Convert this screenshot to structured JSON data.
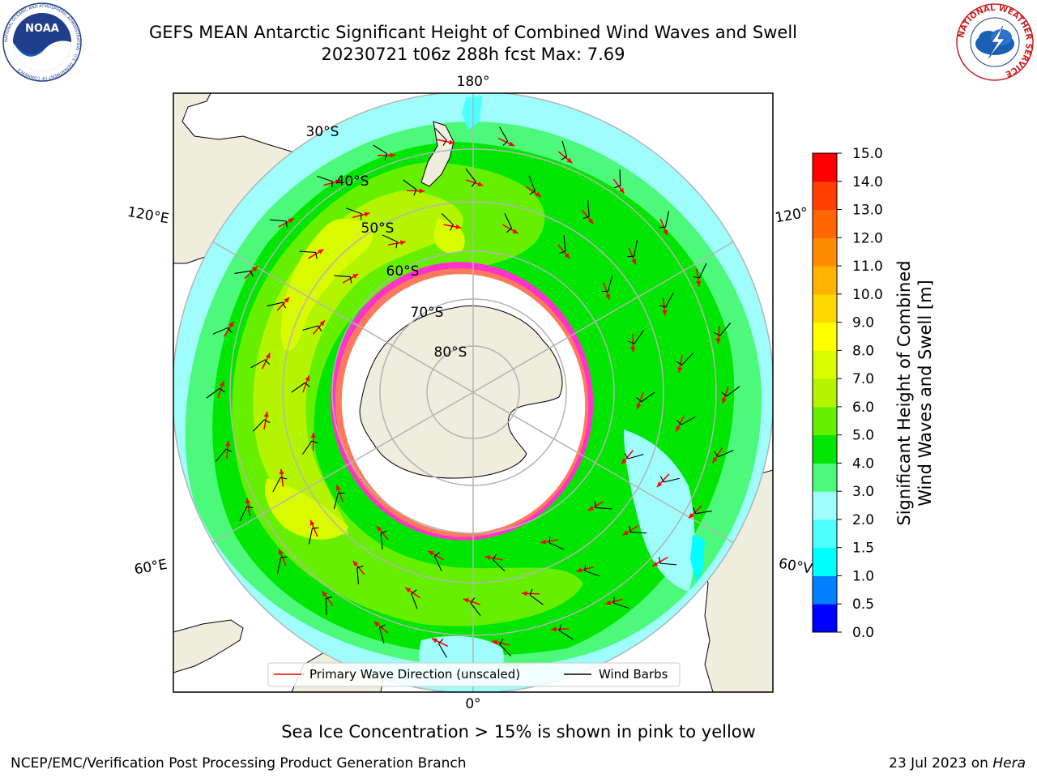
{
  "header": {
    "title_line1": "GEFS MEAN Antarctic Significant Height of Combined Wind Waves and Swell",
    "title_line2": "20230721 t06z 288h fcst   Max: 7.69"
  },
  "logos": {
    "noaa_text": "NOAA",
    "noaa_ring_text": "NATIONAL OCEANIC AND ATMOSPHERIC ADMINISTRATION · U.S. DEPARTMENT OF COMMERCE",
    "nws_ring_text": "NATIONAL WEATHER SERVICE"
  },
  "map": {
    "projection": "south-polar-stereographic",
    "longitude_labels": {
      "top": "180°",
      "bottom": "0°",
      "upper_left": "120°E",
      "lower_left": "60°E",
      "upper_right": "120°",
      "lower_right": "60°V"
    },
    "latitude_labels": [
      "30°S",
      "40°S",
      "50°S",
      "60°S",
      "70°S",
      "80°S"
    ],
    "colors": {
      "land": "#efedde",
      "ocean_low": "#9ffdfc",
      "wave_3_4": "#4df97a",
      "wave_4_5": "#00e600",
      "wave_5_6": "#66f000",
      "wave_6_7": "#b3f500",
      "wave_7_8": "#d9fb00",
      "sea_ice_edge": "#ff33cc",
      "sea_ice_yellow": "#ffb300",
      "wave_arrow": "#ff0000",
      "wind_barb": "#000000",
      "graticule": "#b4b4b4"
    }
  },
  "legend": {
    "items": [
      {
        "label": "Primary Wave Direction (unscaled)",
        "color": "#ff0000"
      },
      {
        "label": "Wind Barbs",
        "color": "#000000"
      }
    ]
  },
  "colorbar": {
    "label": "Significant Height of Combined\nWind Waves and Swell [m]",
    "label_line1": "Significant Height of Combined",
    "label_line2": "Wind Waves and Swell [m]",
    "ticks": [
      "0.0",
      "0.5",
      "1.0",
      "1.5",
      "2.0",
      "3.0",
      "4.0",
      "5.0",
      "6.0",
      "7.0",
      "8.0",
      "9.0",
      "10.0",
      "11.0",
      "12.0",
      "13.0",
      "14.0",
      "15.0"
    ],
    "colors": [
      "#0000ff",
      "#0080ff",
      "#00ffff",
      "#4dffff",
      "#9ffffe",
      "#4df97a",
      "#00e600",
      "#66f000",
      "#b3f500",
      "#d9fb00",
      "#ffff00",
      "#ffd700",
      "#ffb300",
      "#ff8c00",
      "#ff6600",
      "#ff4000",
      "#ff0000"
    ]
  },
  "caption": "Sea Ice Concentration > 15% is shown in pink to yellow",
  "footer": {
    "left": "NCEP/EMC/Verification Post Processing Product Generation Branch",
    "right_date": "23 Jul 2023 on ",
    "right_host": "Hera"
  }
}
